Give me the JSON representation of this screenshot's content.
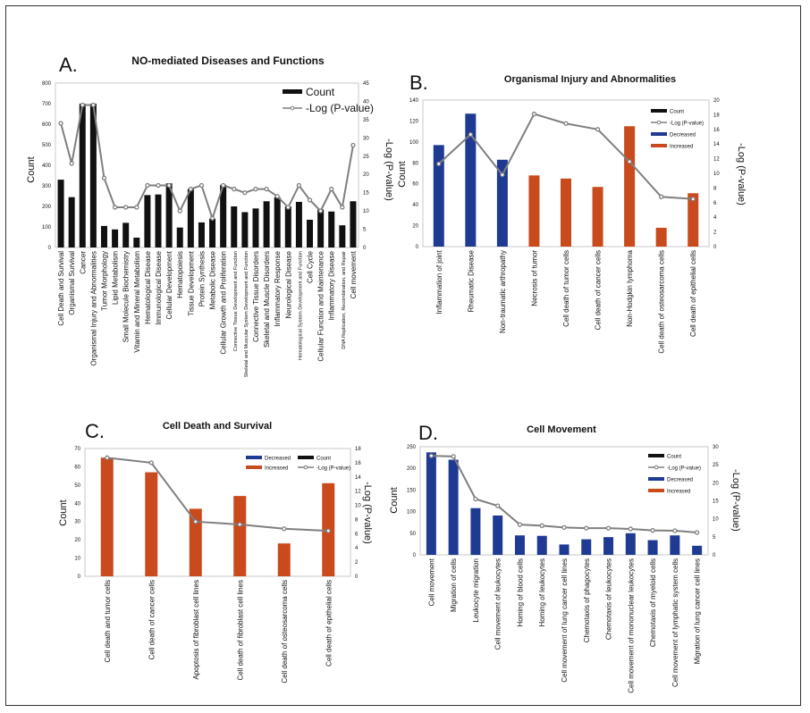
{
  "chart_data": [
    {
      "panel": "A.",
      "type": "bar+line",
      "title": "NO-mediated Diseases and Functions",
      "ylabel": "Count",
      "y2label": "-Log (P-value)",
      "ylim": [
        0,
        800
      ],
      "yticks": [
        0,
        100,
        200,
        300,
        400,
        500,
        600,
        700,
        800
      ],
      "y2lim": [
        0,
        45
      ],
      "y2ticks": [
        0,
        5,
        10,
        15,
        20,
        25,
        30,
        35,
        40,
        45
      ],
      "legend": [
        "Count",
        "-Log (P-value)"
      ],
      "categories": [
        "Cell Death and Survival",
        "Organismal Survival",
        "Cancer",
        "Organismal Injury and Abnormalities",
        "Tumor Morphology",
        "Lipid Metabolism",
        "Small Molecule Biochemistry",
        "Vitamin and Mineral Metabolism",
        "Hematological Disease",
        "Immunological Disease",
        "Cellular Development",
        "Hematopoiesis",
        "Tissue Development",
        "Protein Synthesis",
        "Metabolic Disease",
        "Cellular Growth and Proliferation",
        "Connective Tissue Development and Function",
        "Skeletal and Muscular System Development and Function",
        "Connective Tissue Disorders",
        "Skeletal and Muscle Disorders",
        "Inflammatory Response",
        "Neurological Disease",
        "Hematological System Development and Function",
        "Cell Cycle",
        "Cellular Function and Maintenance",
        "Inflammatory Disease",
        "DNA Replication, Recombination, and Repair",
        "Cell movement"
      ],
      "count": [
        330,
        245,
        700,
        700,
        105,
        88,
        120,
        48,
        255,
        258,
        312,
        97,
        285,
        122,
        140,
        305,
        200,
        172,
        190,
        225,
        245,
        200,
        222,
        135,
        185,
        175,
        108,
        225
      ],
      "neg_log_p": [
        34,
        23,
        39,
        39,
        19,
        11,
        11,
        11,
        17,
        17,
        17,
        10,
        16,
        17,
        8,
        17,
        16,
        15,
        16,
        16,
        14,
        11,
        17,
        13,
        10,
        16,
        11,
        28
      ],
      "direction": null
    },
    {
      "panel": "B.",
      "type": "bar+line",
      "title": "Organismal Injury and Abnormalities",
      "ylabel": "Count",
      "y2label": "-Log (P-value)",
      "ylim": [
        0,
        140
      ],
      "yticks": [
        0,
        20,
        40,
        60,
        80,
        100,
        120,
        140
      ],
      "y2lim": [
        0,
        20
      ],
      "y2ticks": [
        0,
        2,
        4,
        6,
        8,
        10,
        12,
        14,
        16,
        18,
        20
      ],
      "legend": [
        "Count",
        "-Log (P-value)",
        "Decreased",
        "Increased"
      ],
      "categories": [
        "Inflammation of joint",
        "Rheumatic Disease",
        "Non-traumatic arthropathy",
        "Necrosis of tumor",
        "Cell death of tumor cells",
        "Cell death of cancer cells",
        "Non-Hodgkin lymphoma",
        "Cell death of osteosarcoma cells",
        "Cell death of epithelial cells"
      ],
      "count": [
        97,
        127,
        83,
        68,
        65,
        57,
        115,
        18,
        51
      ],
      "neg_log_p": [
        11.3,
        15.3,
        9.8,
        18.1,
        16.8,
        16.0,
        11.6,
        6.8,
        6.5
      ],
      "direction": [
        "Decreased",
        "Decreased",
        "Decreased",
        "Increased",
        "Increased",
        "Increased",
        "Increased",
        "Increased",
        "Increased"
      ]
    },
    {
      "panel": "C.",
      "type": "bar+line",
      "title": "Cell Death and Survival",
      "ylabel": "Count",
      "y2label": "-Log (P-value)",
      "ylim": [
        0,
        70
      ],
      "yticks": [
        0,
        10,
        20,
        30,
        40,
        50,
        60,
        70
      ],
      "y2lim": [
        0,
        18
      ],
      "y2ticks": [
        0,
        2,
        4,
        6,
        8,
        10,
        12,
        14,
        16,
        18
      ],
      "legend": [
        "Decreased",
        "Count",
        "Increased",
        "-Log (P-value)"
      ],
      "categories": [
        "Cell death and tumor cells",
        "Cell death of cancer cells",
        "Apoptosis of fibroblast cell lines",
        "Cell death of fibroblast cell lines",
        "Cell death of osteosarcoma cells",
        "Cell death of epithelial cells"
      ],
      "count": [
        65,
        57,
        37,
        44,
        18,
        51
      ],
      "neg_log_p": [
        16.7,
        16.0,
        7.7,
        7.3,
        6.7,
        6.4
      ],
      "direction": [
        "Increased",
        "Increased",
        "Increased",
        "Increased",
        "Increased",
        "Increased"
      ]
    },
    {
      "panel": "D.",
      "type": "bar+line",
      "title": "Cell Movement",
      "ylabel": "Count",
      "y2label": "-Log (P-value)",
      "ylim": [
        0,
        250
      ],
      "yticks": [
        0,
        50,
        100,
        150,
        200,
        250
      ],
      "y2lim": [
        0,
        30
      ],
      "y2ticks": [
        0,
        5,
        10,
        15,
        20,
        25,
        30
      ],
      "legend": [
        "Count",
        "-Log (P-value)",
        "Decreased",
        "Increased"
      ],
      "categories": [
        "Cell movement",
        "Migration of cells",
        "Leukocyte migration",
        "Cell movement of leukocytes",
        "Homing of blood cells",
        "Homing of leukocytes",
        "Cell movement of lung cancer cell lines",
        "Chemotaxis of phagocytes",
        "Chemotaxis of leukocytes",
        "Cell movement of mononuclear leukocytes",
        "Chemotaxis of myeloid cells",
        "Cell movement of lymphatic system cells",
        "Migration of lung cancer cell lines"
      ],
      "count": [
        237,
        220,
        108,
        91,
        45,
        44,
        24,
        36,
        41,
        50,
        34,
        45,
        21
      ],
      "neg_log_p": [
        27.5,
        27.3,
        15.5,
        13.6,
        8.4,
        8.1,
        7.6,
        7.4,
        7.4,
        7.2,
        6.8,
        6.7,
        6.2
      ],
      "direction": [
        "Decreased",
        "Decreased",
        "Decreased",
        "Decreased",
        "Decreased",
        "Decreased",
        "Decreased",
        "Decreased",
        "Decreased",
        "Decreased",
        "Decreased",
        "Decreased",
        "Decreased"
      ]
    }
  ],
  "colors": {
    "count": "#111111",
    "line": "#7f7f7f",
    "Decreased": "#1f3a93",
    "Increased": "#c94a1c",
    "axis": "#c8c8c8"
  }
}
